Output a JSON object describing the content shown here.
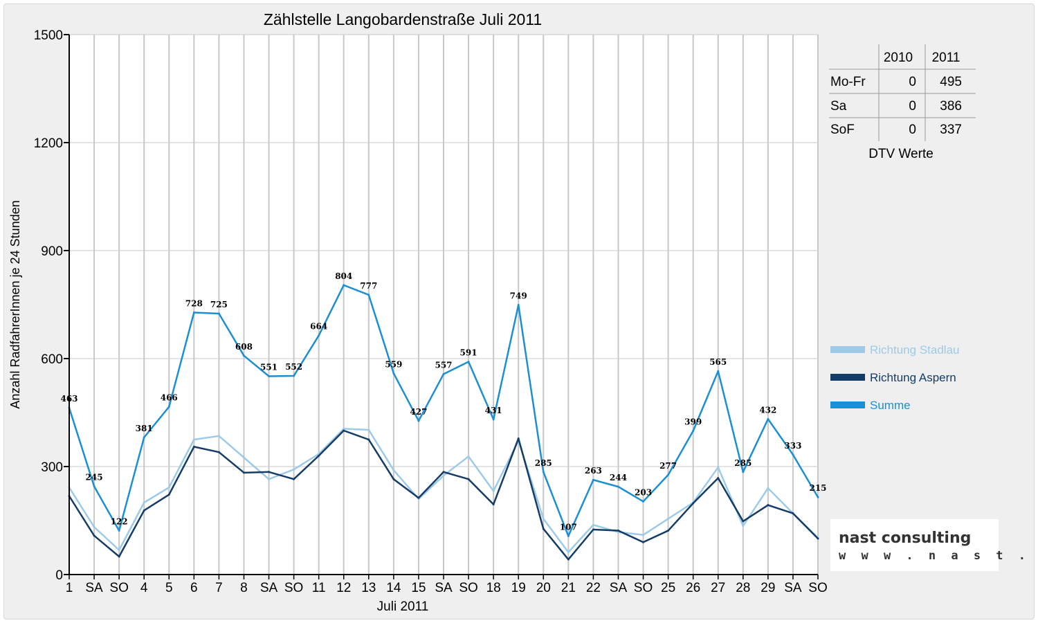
{
  "chart_data": {
    "type": "line",
    "title": "Zählstelle Langobardenstraße Juli 2011",
    "xlabel": "Juli 2011",
    "ylabel": "Anzahl RadfahrerInnen je 24 Stunden",
    "ylim": [
      0,
      1500
    ],
    "yticks": [
      0,
      300,
      600,
      900,
      1200,
      1500
    ],
    "grid": true,
    "categories": [
      "1",
      "SA",
      "SO",
      "4",
      "5",
      "6",
      "7",
      "8",
      "SA",
      "SO",
      "11",
      "12",
      "13",
      "14",
      "15",
      "SA",
      "SO",
      "18",
      "19",
      "20",
      "21",
      "22",
      "SA",
      "SO",
      "25",
      "26",
      "27",
      "28",
      "29",
      "SA",
      "SO"
    ],
    "category_colors": [
      "#000000",
      "#000000",
      "#e00000",
      "#000000",
      "#000000",
      "#000000",
      "#000000",
      "#000000",
      "#000000",
      "#e00000",
      "#000000",
      "#000000",
      "#000000",
      "#000000",
      "#000000",
      "#000000",
      "#e00000",
      "#000000",
      "#000000",
      "#000000",
      "#000000",
      "#000000",
      "#000000",
      "#e00000",
      "#000000",
      "#000000",
      "#000000",
      "#000000",
      "#000000",
      "#000000",
      "#e00000"
    ],
    "series": [
      {
        "name": "Richtung Stadlau",
        "color": "#9dcbe7",
        "values": [
          242,
          132,
          68,
          200,
          242,
          375,
          385,
          325,
          265,
          292,
          335,
          405,
          402,
          290,
          210,
          275,
          328,
          232,
          372,
          155,
          62,
          138,
          118,
          110,
          155,
          200,
          298,
          135,
          240,
          170,
          102
        ]
      },
      {
        "name": "Richtung Aspern",
        "color": "#143c66",
        "values": [
          218,
          108,
          50,
          178,
          222,
          355,
          340,
          283,
          285,
          265,
          330,
          400,
          375,
          265,
          213,
          285,
          265,
          195,
          378,
          127,
          42,
          125,
          122,
          90,
          122,
          198,
          268,
          148,
          193,
          170,
          100
        ]
      },
      {
        "name": "Summe",
        "color": "#1b8fd2",
        "values": [
          463,
          245,
          122,
          381,
          466,
          728,
          725,
          608,
          551,
          552,
          664,
          804,
          777,
          559,
          427,
          557,
          591,
          431,
          749,
          285,
          107,
          263,
          244,
          203,
          277,
          399,
          565,
          285,
          432,
          333,
          215
        ],
        "labels": true
      }
    ],
    "legend_position": "right"
  },
  "dtv_table": {
    "headers": [
      "",
      "2010",
      "2011"
    ],
    "rows": [
      {
        "label": "Mo-Fr",
        "v2010": "0",
        "v2011": "495"
      },
      {
        "label": "Sa",
        "v2010": "0",
        "v2011": "386"
      },
      {
        "label": "SoF",
        "v2010": "0",
        "v2011": "337"
      }
    ],
    "caption": "DTV Werte"
  },
  "logo": {
    "main": "nast consulting",
    "url": "w w w . n a s t . a t"
  },
  "colors": {
    "grid": "#c8c8c8",
    "axis": "#000000",
    "sunday": "#e00000"
  }
}
